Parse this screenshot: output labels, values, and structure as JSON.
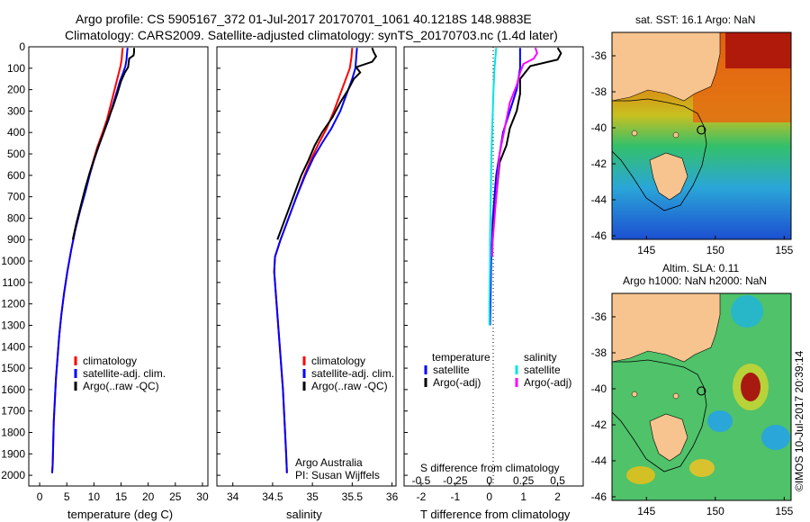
{
  "header": {
    "line1": "Argo profile: CS 5905167_372 01-Jul-2017 20170701_1061 40.1218S 148.9883E",
    "line2": "Climatology: CARS2009. Satellite-adjusted climatology: synTS_20170703.nc (1.4d later)"
  },
  "credit": "Argo Australia",
  "pi": "PI: Susan Wijffels",
  "imos_stamp": "©IMOS 10-Jul-2017 20:39:14",
  "colors": {
    "climatology": "#ff0000",
    "satellite": "#0000ff",
    "argo": "#000000",
    "salinity_satellite": "#00e5e5",
    "salinity_argo": "#ff00ff",
    "land": "#f7c48f"
  },
  "chart_data": [
    {
      "type": "line",
      "panel": "temperature",
      "xlabel": "temperature (deg C)",
      "x_ticks": [
        "0",
        "5",
        "10",
        "15",
        "20",
        "25",
        "30"
      ],
      "xlim": [
        -2,
        31
      ],
      "ylim": [
        2050,
        0
      ],
      "y_ticks": [
        "0",
        "100",
        "200",
        "300",
        "400",
        "500",
        "600",
        "700",
        "800",
        "900",
        "1000",
        "1100",
        "1200",
        "1300",
        "1400",
        "1500",
        "1600",
        "1700",
        "1800",
        "1900",
        "2000"
      ],
      "legend": [
        "climatology",
        "satellite-adj. clim.",
        "Argo(..raw -QC)"
      ],
      "series": [
        {
          "name": "climatology",
          "color": "#ff0000",
          "points": [
            [
              15.3,
              5
            ],
            [
              15.2,
              30
            ],
            [
              15.1,
              60
            ],
            [
              14.9,
              90
            ],
            [
              14.6,
              120
            ],
            [
              14.2,
              160
            ],
            [
              13.6,
              220
            ],
            [
              13.0,
              280
            ],
            [
              12.4,
              340
            ],
            [
              11.6,
              400
            ],
            [
              10.6,
              470
            ],
            [
              9.9,
              530
            ],
            [
              9.1,
              600
            ],
            [
              8.3,
              680
            ],
            [
              7.5,
              760
            ],
            [
              6.6,
              850
            ],
            [
              5.8,
              950
            ],
            [
              5.1,
              1050
            ],
            [
              4.5,
              1150
            ],
            [
              4.0,
              1250
            ],
            [
              3.6,
              1350
            ],
            [
              3.3,
              1450
            ],
            [
              3.0,
              1550
            ],
            [
              2.8,
              1650
            ],
            [
              2.6,
              1750
            ],
            [
              2.5,
              1850
            ],
            [
              2.4,
              1950
            ],
            [
              2.3,
              1990
            ]
          ]
        },
        {
          "name": "satellite-adj. clim.",
          "color": "#0000ff",
          "points": [
            [
              16.2,
              5
            ],
            [
              16.1,
              30
            ],
            [
              16.0,
              60
            ],
            [
              15.8,
              90
            ],
            [
              15.4,
              120
            ],
            [
              14.8,
              160
            ],
            [
              14.1,
              220
            ],
            [
              13.4,
              280
            ],
            [
              12.7,
              340
            ],
            [
              11.8,
              400
            ],
            [
              10.8,
              470
            ],
            [
              10.0,
              530
            ],
            [
              9.2,
              600
            ],
            [
              8.4,
              680
            ],
            [
              7.5,
              760
            ],
            [
              6.6,
              850
            ],
            [
              5.8,
              950
            ],
            [
              5.1,
              1050
            ],
            [
              4.5,
              1150
            ],
            [
              4.0,
              1250
            ],
            [
              3.6,
              1350
            ],
            [
              3.3,
              1450
            ],
            [
              3.0,
              1550
            ],
            [
              2.8,
              1650
            ],
            [
              2.6,
              1750
            ],
            [
              2.5,
              1850
            ],
            [
              2.4,
              1950
            ],
            [
              2.3,
              1990
            ]
          ]
        },
        {
          "name": "Argo(..raw -QC)",
          "color": "#000000",
          "points": [
            [
              17.4,
              5
            ],
            [
              17.4,
              25
            ],
            [
              17.3,
              40
            ],
            [
              16.5,
              55
            ],
            [
              16.4,
              75
            ],
            [
              16.3,
              95
            ],
            [
              15.7,
              120
            ],
            [
              15.0,
              160
            ],
            [
              14.3,
              220
            ],
            [
              13.5,
              280
            ],
            [
              12.6,
              340
            ],
            [
              11.8,
              400
            ],
            [
              10.9,
              460
            ],
            [
              10.1,
              520
            ],
            [
              9.2,
              590
            ],
            [
              8.4,
              660
            ],
            [
              7.6,
              740
            ],
            [
              6.8,
              820
            ],
            [
              6.1,
              900
            ]
          ]
        }
      ]
    },
    {
      "type": "line",
      "panel": "salinity",
      "xlabel": "salinity",
      "x_ticks": [
        "34",
        "34.5",
        "35",
        "35.5",
        "36"
      ],
      "xlim": [
        33.8,
        36.05
      ],
      "ylim": [
        2050,
        0
      ],
      "legend": [
        "climatology",
        "satellite-adj. clim.",
        "Argo(..raw -QC)"
      ],
      "series": [
        {
          "name": "climatology",
          "color": "#ff0000",
          "points": [
            [
              35.5,
              5
            ],
            [
              35.49,
              50
            ],
            [
              35.47,
              100
            ],
            [
              35.42,
              150
            ],
            [
              35.35,
              220
            ],
            [
              35.27,
              300
            ],
            [
              35.18,
              380
            ],
            [
              35.08,
              450
            ],
            [
              34.99,
              520
            ],
            [
              34.9,
              600
            ],
            [
              34.8,
              700
            ],
            [
              34.7,
              800
            ],
            [
              34.6,
              900
            ],
            [
              34.53,
              980
            ],
            [
              34.52,
              1050
            ],
            [
              34.54,
              1150
            ],
            [
              34.57,
              1300
            ],
            [
              34.6,
              1450
            ],
            [
              34.63,
              1600
            ],
            [
              34.65,
              1750
            ],
            [
              34.67,
              1900
            ],
            [
              34.68,
              1990
            ]
          ]
        },
        {
          "name": "satellite-adj. clim.",
          "color": "#0000ff",
          "points": [
            [
              35.56,
              5
            ],
            [
              35.55,
              50
            ],
            [
              35.54,
              100
            ],
            [
              35.5,
              150
            ],
            [
              35.43,
              220
            ],
            [
              35.35,
              300
            ],
            [
              35.24,
              380
            ],
            [
              35.12,
              450
            ],
            [
              35.01,
              520
            ],
            [
              34.91,
              600
            ],
            [
              34.8,
              700
            ],
            [
              34.7,
              800
            ],
            [
              34.6,
              900
            ],
            [
              34.53,
              980
            ],
            [
              34.52,
              1050
            ],
            [
              34.54,
              1150
            ],
            [
              34.57,
              1300
            ],
            [
              34.6,
              1450
            ],
            [
              34.63,
              1600
            ],
            [
              34.65,
              1750
            ],
            [
              34.67,
              1900
            ],
            [
              34.68,
              1990
            ]
          ]
        },
        {
          "name": "Argo(..raw -QC)",
          "color": "#000000",
          "points": [
            [
              35.75,
              5
            ],
            [
              35.77,
              25
            ],
            [
              35.8,
              45
            ],
            [
              35.75,
              70
            ],
            [
              35.55,
              95
            ],
            [
              35.6,
              120
            ],
            [
              35.52,
              150
            ],
            [
              35.45,
              200
            ],
            [
              35.35,
              260
            ],
            [
              35.25,
              330
            ],
            [
              35.12,
              400
            ],
            [
              35.03,
              460
            ],
            [
              34.95,
              530
            ],
            [
              34.86,
              600
            ],
            [
              34.78,
              680
            ],
            [
              34.7,
              760
            ],
            [
              34.62,
              840
            ],
            [
              34.56,
              900
            ]
          ]
        }
      ]
    },
    {
      "type": "line",
      "panel": "difference",
      "xlabel": "T difference from climatology",
      "xlabel_top": "S difference from climatology",
      "x_ticks": [
        "-2",
        "-1",
        "0",
        "1",
        "2"
      ],
      "x_ticks_top": [
        "-0.5",
        "-0.25",
        "0",
        "0.25",
        "0.5"
      ],
      "xlim": [
        -2.5,
        2.75
      ],
      "ylim": [
        2050,
        0
      ],
      "legend": {
        "temperature_header": "temperature",
        "salinity_header": "salinity",
        "temperature_items": [
          "satellite",
          "Argo(-adj)"
        ],
        "salinity_items": [
          "satellite",
          "Argo(-adj)"
        ]
      },
      "series": [
        {
          "name": "T satellite",
          "color": "#0000ff",
          "points": [
            [
              0.9,
              5
            ],
            [
              0.9,
              100
            ],
            [
              0.8,
              200
            ],
            [
              0.6,
              300
            ],
            [
              0.4,
              400
            ],
            [
              0.3,
              500
            ],
            [
              0.2,
              600
            ],
            [
              0.15,
              700
            ],
            [
              0.1,
              800
            ],
            [
              0.08,
              900
            ],
            [
              0.05,
              1000
            ],
            [
              0.04,
              1100
            ],
            [
              0.03,
              1200
            ],
            [
              0.02,
              1300
            ]
          ]
        },
        {
          "name": "T Argo(-adj)",
          "color": "#000000",
          "points": [
            [
              2.0,
              5
            ],
            [
              2.1,
              30
            ],
            [
              2.0,
              60
            ],
            [
              1.2,
              90
            ],
            [
              0.9,
              150
            ],
            [
              0.9,
              220
            ],
            [
              0.8,
              300
            ],
            [
              0.6,
              380
            ],
            [
              0.5,
              460
            ],
            [
              0.3,
              540
            ],
            [
              0.25,
              620
            ],
            [
              0.2,
              700
            ],
            [
              0.15,
              780
            ],
            [
              0.1,
              860
            ]
          ]
        },
        {
          "name": "S satellite",
          "color": "#00e5e5",
          "points": [
            [
              0.2,
              5
            ],
            [
              0.15,
              100
            ],
            [
              0.12,
              200
            ],
            [
              0.1,
              300
            ],
            [
              0.08,
              400
            ],
            [
              0.06,
              500
            ],
            [
              0.05,
              600
            ],
            [
              0.04,
              700
            ],
            [
              0.03,
              800
            ],
            [
              0.02,
              900
            ],
            [
              0.02,
              1000
            ],
            [
              0.01,
              1100
            ],
            [
              0.0,
              1200
            ],
            [
              0.0,
              1300
            ]
          ]
        },
        {
          "name": "S Argo(-adj)",
          "color": "#ff00ff",
          "points": [
            [
              1.35,
              5
            ],
            [
              1.4,
              30
            ],
            [
              1.3,
              55
            ],
            [
              1.0,
              80
            ],
            [
              0.9,
              120
            ],
            [
              0.8,
              180
            ],
            [
              0.6,
              260
            ],
            [
              0.5,
              340
            ],
            [
              0.4,
              420
            ],
            [
              0.3,
              500
            ],
            [
              0.25,
              600
            ],
            [
              0.2,
              700
            ],
            [
              0.15,
              800
            ],
            [
              0.1,
              900
            ],
            [
              0.08,
              980
            ]
          ]
        }
      ]
    },
    {
      "type": "heatmap",
      "panel": "sst_map",
      "title": "sat. SST: 16.1  Argo: NaN",
      "x_ticks": [
        "145",
        "150",
        "155"
      ],
      "y_ticks": [
        "-36",
        "-38",
        "-40",
        "-42",
        "-44",
        "-46"
      ],
      "xlim": [
        142.5,
        155.5
      ],
      "ylim": [
        -46.2,
        -34.7
      ],
      "argo_position": [
        148.9883,
        -40.1218
      ]
    },
    {
      "type": "heatmap",
      "panel": "sla_map",
      "title_line1": "Altim. SLA: 0.11",
      "title_line2": "Argo h1000: NaN  h2000: NaN",
      "x_ticks": [
        "145",
        "150",
        "155"
      ],
      "y_ticks": [
        "-36",
        "-38",
        "-40",
        "-42",
        "-44",
        "-46"
      ],
      "xlim": [
        142.5,
        155.5
      ],
      "ylim": [
        -46.2,
        -34.7
      ],
      "argo_position": [
        148.9883,
        -40.1218
      ]
    }
  ]
}
